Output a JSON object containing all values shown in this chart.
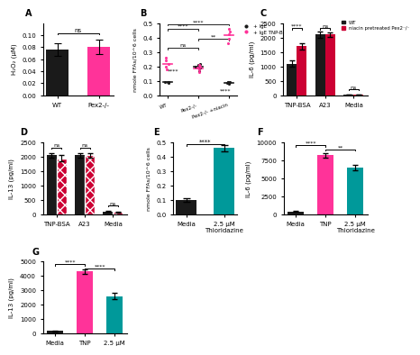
{
  "panel_A": {
    "categories": [
      "WT",
      "Pex2-/-"
    ],
    "values": [
      0.076,
      0.08
    ],
    "errors": [
      0.01,
      0.012
    ],
    "bar_colors": [
      "#1a1a1a",
      "#ff3399"
    ],
    "ylabel": "H₂O₂ (μM)",
    "ylim": [
      0,
      0.12
    ],
    "yticks": [
      0,
      0.02,
      0.04,
      0.06,
      0.08,
      0.1
    ],
    "sig": "ns",
    "label": "A"
  },
  "panel_B": {
    "legend": [
      "+ IgE",
      "+ IgE TNP-BSA"
    ],
    "legend_colors": [
      "#1a1a1a",
      "#ff3399"
    ],
    "categories": [
      "WT",
      "Pex2-/-",
      "Pex2-/- +niacin"
    ],
    "ylabel": "nmole FFAs/10^6 cells",
    "ylim": [
      0,
      0.5
    ],
    "yticks": [
      0,
      0.1,
      0.2,
      0.3,
      0.4,
      0.5
    ],
    "label": "B",
    "ige_scatter_WT": [
      0.085,
      0.09,
      0.09,
      0.095,
      0.095
    ],
    "ige_tnp_scatter_WT": [
      0.18,
      0.2,
      0.22,
      0.24,
      0.26
    ],
    "ige_scatter_Pex2": [
      0.17,
      0.19,
      0.2,
      0.21,
      0.22
    ],
    "ige_tnp_scatter_Pex2": [
      0.16,
      0.18,
      0.19,
      0.2,
      0.21
    ],
    "ige_scatter_Niacin": [
      0.08,
      0.085,
      0.09,
      0.09,
      0.095
    ],
    "ige_tnp_scatter_Niacin": [
      0.36,
      0.39,
      0.42,
      0.44,
      0.46
    ]
  },
  "panel_C": {
    "categories": [
      "TNP-BSA",
      "A23",
      "Media"
    ],
    "wt_values": [
      1100,
      2100,
      30
    ],
    "niacin_values": [
      1700,
      2100,
      25
    ],
    "wt_errors": [
      120,
      100,
      10
    ],
    "niacin_errors": [
      100,
      80,
      8
    ],
    "wt_color": "#1a1a1a",
    "niacin_color": "#cc0033",
    "ylabel": "IL-6 (pg/ml)",
    "ylim": [
      0,
      2500
    ],
    "yticks": [
      0,
      500,
      1000,
      1500,
      2000,
      2500
    ],
    "sig": [
      "****",
      "ns",
      "ns"
    ],
    "label": "C",
    "legend": [
      "WT",
      "niacin pretreated Pex2-/-"
    ]
  },
  "panel_D": {
    "categories": [
      "TNP-BSA",
      "A23",
      "Media"
    ],
    "wt_values": [
      2050,
      2050,
      100
    ],
    "pink_values": [
      1950,
      2050,
      90
    ],
    "wt_errors": [
      80,
      80,
      15
    ],
    "pink_errors": [
      100,
      80,
      15
    ],
    "wt_color": "#1a1a1a",
    "pink_color": "#cc0033",
    "ylabel": "IL-13 (pg/ml)",
    "ylim": [
      0,
      2500
    ],
    "yticks": [
      0,
      500,
      1000,
      1500,
      2000,
      2500
    ],
    "sig": [
      "ns",
      "ns",
      "ns"
    ],
    "label": "D"
  },
  "panel_E": {
    "categories": [
      "Media",
      "2.5 μM\nThioridazine"
    ],
    "values": [
      0.1,
      0.46
    ],
    "errors": [
      0.015,
      0.02
    ],
    "bar_colors": [
      "#1a1a1a",
      "#00999a"
    ],
    "ylabel": "nmole FFAs/10^6 cells",
    "ylim": [
      0,
      0.5
    ],
    "yticks": [
      0,
      0.1,
      0.2,
      0.3,
      0.4,
      0.5
    ],
    "sig": "****",
    "label": "E"
  },
  "panel_F": {
    "categories": [
      "Media",
      "TNP",
      "2.5 μM\nThioridazine"
    ],
    "values": [
      400,
      8200,
      6500
    ],
    "errors": [
      50,
      300,
      350
    ],
    "bar_colors": [
      "#1a1a1a",
      "#ff3399",
      "#00999a"
    ],
    "ylabel": "IL-6 (pg/ml)",
    "ylim": [
      0,
      10000
    ],
    "yticks": [
      0,
      2500,
      5000,
      7500,
      10000
    ],
    "sig_labels": [
      "****",
      "**"
    ],
    "label": "F"
  },
  "panel_G": {
    "categories": [
      "Media",
      "TNP",
      "2.5 μM"
    ],
    "values": [
      200,
      4300,
      2600
    ],
    "errors": [
      30,
      150,
      200
    ],
    "bar_colors": [
      "#1a1a1a",
      "#ff3399",
      "#00999a"
    ],
    "ylabel": "IL-13 (pg/ml)",
    "ylim": [
      0,
      5000
    ],
    "yticks": [
      0,
      1000,
      2000,
      3000,
      4000,
      5000
    ],
    "sig_labels": [
      "****",
      "****"
    ],
    "label": "G"
  }
}
